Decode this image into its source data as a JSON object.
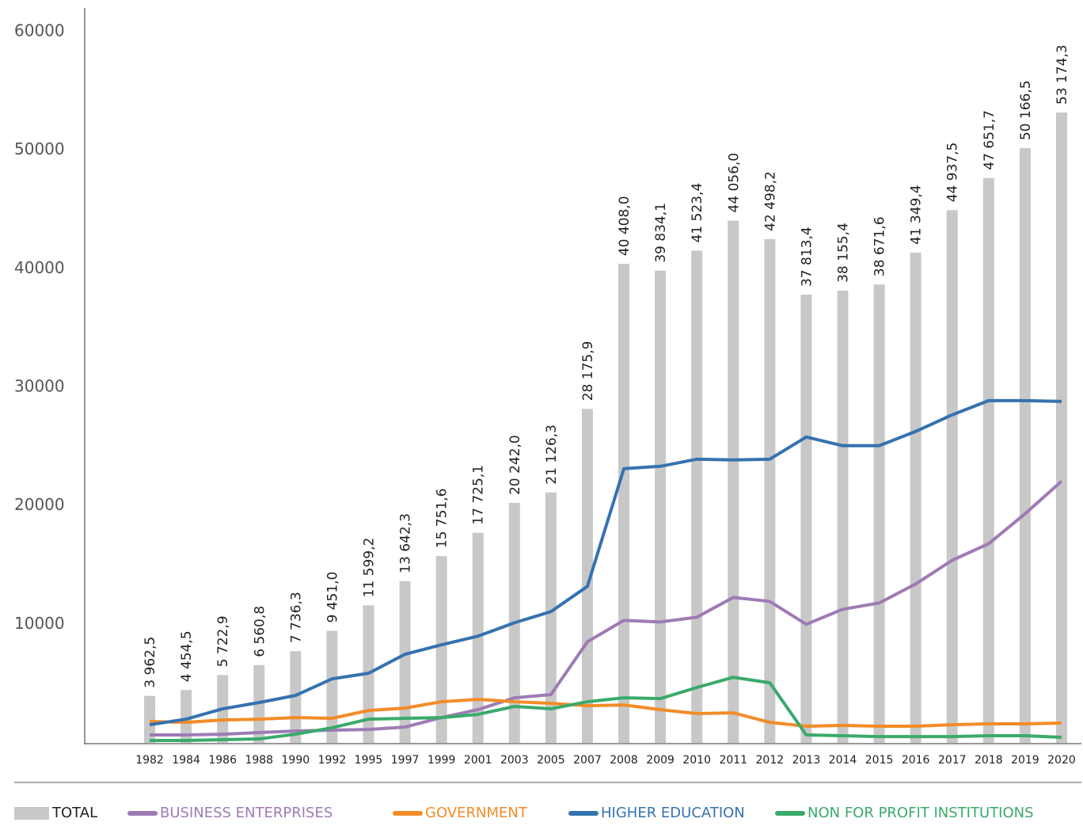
{
  "chart_data": {
    "type": "bar",
    "categories": [
      "1982",
      "1984",
      "1986",
      "1988",
      "1990",
      "1992",
      "1995",
      "1997",
      "1999",
      "2001",
      "2003",
      "2005",
      "2007",
      "2008",
      "2009",
      "2010",
      "2011",
      "2012",
      "2013",
      "2014",
      "2015",
      "2016",
      "2017",
      "2018",
      "2019",
      "2020"
    ],
    "ylim": [
      0,
      62000
    ],
    "yticks": [
      10000,
      20000,
      30000,
      40000,
      50000,
      60000
    ],
    "grid": false,
    "legend": "bottom",
    "series": [
      {
        "name": "TOTAL",
        "type": "bar",
        "color": "#c8c8c8",
        "values": [
          3962.5,
          4454.5,
          5722.9,
          6560.8,
          7736.3,
          9451.0,
          11599.2,
          13642.3,
          15751.6,
          17725.1,
          20242.0,
          21126.3,
          28175.9,
          40408.0,
          39834.1,
          41523.4,
          44056.0,
          42498.2,
          37813.4,
          38155.4,
          38671.6,
          41349.4,
          44937.5,
          47651.7,
          50166.5,
          53174.3
        ],
        "value_labels": [
          "3 962,5",
          "4 454,5",
          "5 722,9",
          "6 560,8",
          "7 736,3",
          "9 451,0",
          "11 599,2",
          "13 642,3",
          "15 751,6",
          "17 725,1",
          "20 242,0",
          "21 126,3",
          "28 175,9",
          "40 408,0",
          "39 834,1",
          "41 523,4",
          "44 056,0",
          "42 498,2",
          "37 813,4",
          "38 155,4",
          "38 671,6",
          "41 349,4",
          "44 937,5",
          "47 651,7",
          "50 166,5",
          "53 174,3"
        ]
      },
      {
        "name": "BUSINESS ENTERPRISES",
        "type": "line",
        "color": "#9e7bb5",
        "values": [
          670,
          670,
          730,
          870,
          1000,
          1070,
          1130,
          1330,
          2130,
          2800,
          3800,
          4070,
          8530,
          10330,
          10200,
          10600,
          12270,
          11930,
          10000,
          11270,
          11800,
          13400,
          15400,
          16800,
          19330,
          22070
        ]
      },
      {
        "name": "GOVERNMENT",
        "type": "line",
        "color": "#f28c28",
        "values": [
          1800,
          1730,
          1930,
          2000,
          2130,
          2070,
          2730,
          2930,
          3470,
          3670,
          3470,
          3330,
          3130,
          3200,
          2800,
          2470,
          2530,
          1730,
          1400,
          1470,
          1400,
          1400,
          1530,
          1600,
          1600,
          1670
        ]
      },
      {
        "name": "HIGHER EDUCATION",
        "type": "line",
        "color": "#3572b0",
        "values": [
          1530,
          2000,
          2870,
          3400,
          4000,
          5400,
          5870,
          7470,
          8270,
          9000,
          10130,
          11070,
          13200,
          23130,
          23330,
          23930,
          23870,
          23930,
          25800,
          25070,
          25070,
          26270,
          27670,
          28870,
          28870,
          28800
        ]
      },
      {
        "name": "NON FOR PROFIT INSTITUTIONS",
        "type": "line",
        "color": "#3aaa6a",
        "values": [
          200,
          200,
          270,
          330,
          730,
          1270,
          2000,
          2070,
          2130,
          2400,
          3070,
          2870,
          3470,
          3800,
          3730,
          4670,
          5530,
          5070,
          670,
          600,
          530,
          530,
          530,
          600,
          600,
          470
        ]
      }
    ]
  }
}
